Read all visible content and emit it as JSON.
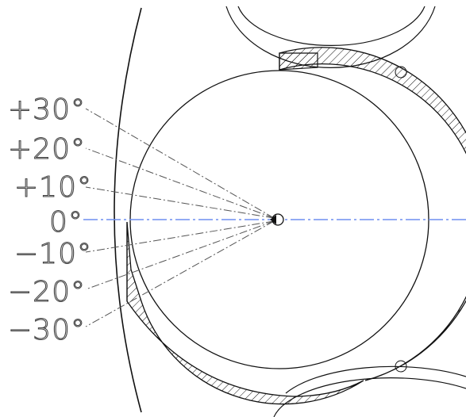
{
  "labels": {
    "plus30": "+30°",
    "plus20": "+20°",
    "plus10": "+10°",
    "zero": "0°",
    "minus10": "−10°",
    "minus20": "−20°",
    "minus30": "−30°"
  },
  "angles_deg": [
    30,
    20,
    10,
    0,
    -10,
    -20,
    -30
  ],
  "colors": {
    "line": "#111111",
    "centerline": "#6f8ff0",
    "dashdot": "#555555",
    "label": "#444444"
  }
}
